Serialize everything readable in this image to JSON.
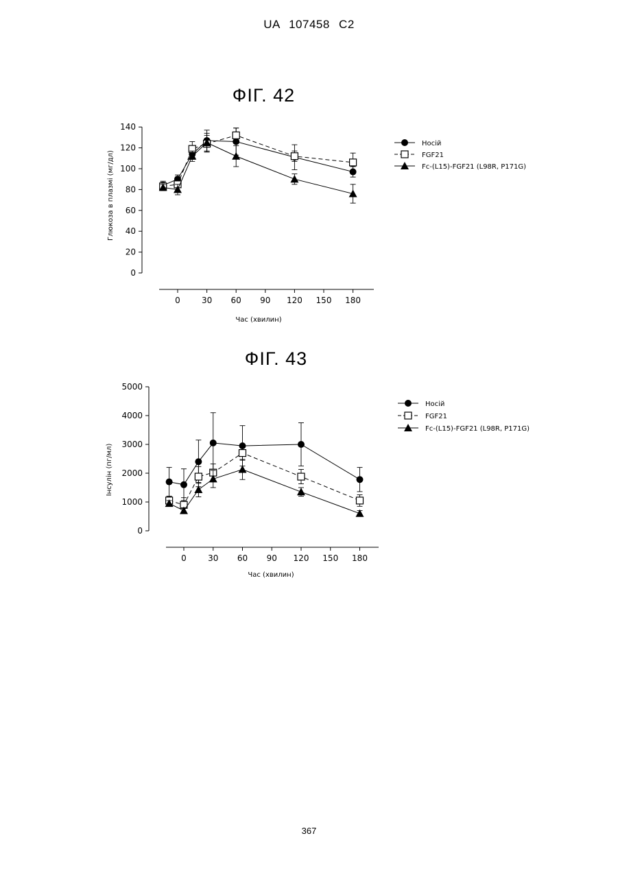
{
  "document": {
    "header": "UA 107458 C2",
    "page_number": "367"
  },
  "chart_data": [
    {
      "type": "line",
      "title": "ФІГ. 42",
      "xlabel": "Час (хвилин)",
      "ylabel": "Глюкоза в плазмі (мг/дл)",
      "xticks": [
        0,
        30,
        60,
        90,
        120,
        150,
        180
      ],
      "yticks": [
        0,
        20,
        40,
        60,
        80,
        100,
        120,
        140
      ],
      "ylim": [
        0,
        140
      ],
      "legend_position": "right",
      "series": [
        {
          "name": "Носій",
          "marker": "filled-circle",
          "line": "solid",
          "color": "#000000",
          "x": [
            -15,
            0,
            15,
            30,
            60,
            120,
            180
          ],
          "y": [
            84,
            90,
            114,
            127,
            126,
            111,
            97
          ],
          "err": [
            4,
            4,
            5,
            10,
            13,
            12,
            5
          ]
        },
        {
          "name": "FGF21",
          "marker": "open-square",
          "line": "dashed",
          "color": "#000000",
          "x": [
            -15,
            0,
            15,
            30,
            60,
            120,
            180
          ],
          "y": [
            83,
            85,
            119,
            124,
            132,
            112,
            106
          ],
          "err": [
            4,
            3,
            7,
            8,
            7,
            5,
            9
          ]
        },
        {
          "name": "Fc-(L15)-FGF21 (L98R, P171G)",
          "marker": "filled-triangle",
          "line": "solid",
          "color": "#000000",
          "x": [
            -15,
            0,
            15,
            30,
            60,
            120,
            180
          ],
          "y": [
            82,
            80,
            112,
            125,
            112,
            90,
            76
          ],
          "err": [
            3,
            5,
            5,
            9,
            10,
            5,
            9
          ]
        }
      ]
    },
    {
      "type": "line",
      "title": "ФІГ. 43",
      "xlabel": "Час (хвилин)",
      "ylabel": "Інсулін (пг/мл)",
      "xticks": [
        0,
        30,
        60,
        90,
        120,
        150,
        180
      ],
      "yticks": [
        0,
        1000,
        2000,
        3000,
        4000,
        5000
      ],
      "ylim": [
        0,
        5000
      ],
      "legend_position": "right",
      "series": [
        {
          "name": "Носій",
          "marker": "filled-circle",
          "line": "solid",
          "color": "#000000",
          "x": [
            -15,
            0,
            15,
            30,
            60,
            120,
            180
          ],
          "y": [
            1700,
            1600,
            2400,
            3050,
            2950,
            3000,
            1780
          ],
          "err": [
            500,
            550,
            750,
            1050,
            700,
            750,
            420
          ]
        },
        {
          "name": "FGF21",
          "marker": "open-square",
          "line": "dashed",
          "color": "#000000",
          "x": [
            -15,
            0,
            15,
            30,
            60,
            120,
            180
          ],
          "y": [
            1050,
            900,
            1880,
            2020,
            2700,
            1880,
            1050
          ],
          "err": [
            150,
            250,
            350,
            300,
            250,
            250,
            200
          ]
        },
        {
          "name": "Fc-(L15)-FGF21 (L98R, P171G)",
          "marker": "filled-triangle",
          "line": "solid",
          "color": "#000000",
          "x": [
            -15,
            0,
            15,
            30,
            60,
            120,
            180
          ],
          "y": [
            950,
            700,
            1430,
            1800,
            2130,
            1350,
            600
          ],
          "err": [
            100,
            100,
            250,
            300,
            350,
            150,
            100
          ]
        }
      ]
    }
  ]
}
